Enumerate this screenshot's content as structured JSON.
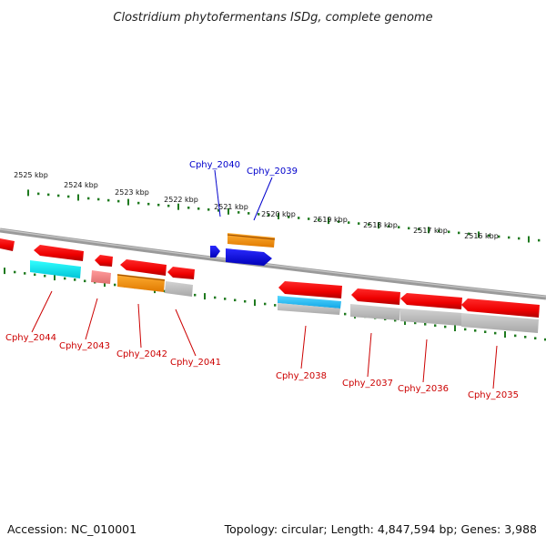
{
  "title": "Clostridium phytofermentans ISDg, complete genome",
  "footer": {
    "accession": "Accession: NC_010001",
    "summary": "Topology: circular; Length: 4,847,594 bp; Genes: 3,988"
  },
  "colors": {
    "backbone": "#8c8c8c",
    "tick": "#1f7a1f",
    "label_forward": "#0000cc",
    "label_reverse": "#cc0000"
  },
  "scale_ticks": [
    "2525 kbp",
    "2524 kbp",
    "2523 kbp",
    "2522 kbp",
    "2521 kbp",
    "2520 kbp",
    "2519 kbp",
    "2518 kbp",
    "2517 kbp",
    "2516 kbp"
  ],
  "genes": [
    {
      "label": "Cphy_2040",
      "strand": "forward"
    },
    {
      "label": "Cphy_2039",
      "strand": "forward"
    },
    {
      "label": "Cphy_2044",
      "strand": "reverse"
    },
    {
      "label": "Cphy_2043",
      "strand": "reverse"
    },
    {
      "label": "Cphy_2042",
      "strand": "reverse"
    },
    {
      "label": "Cphy_2041",
      "strand": "reverse"
    },
    {
      "label": "Cphy_2038",
      "strand": "reverse"
    },
    {
      "label": "Cphy_2037",
      "strand": "reverse"
    },
    {
      "label": "Cphy_2036",
      "strand": "reverse"
    },
    {
      "label": "Cphy_2035",
      "strand": "reverse"
    }
  ]
}
